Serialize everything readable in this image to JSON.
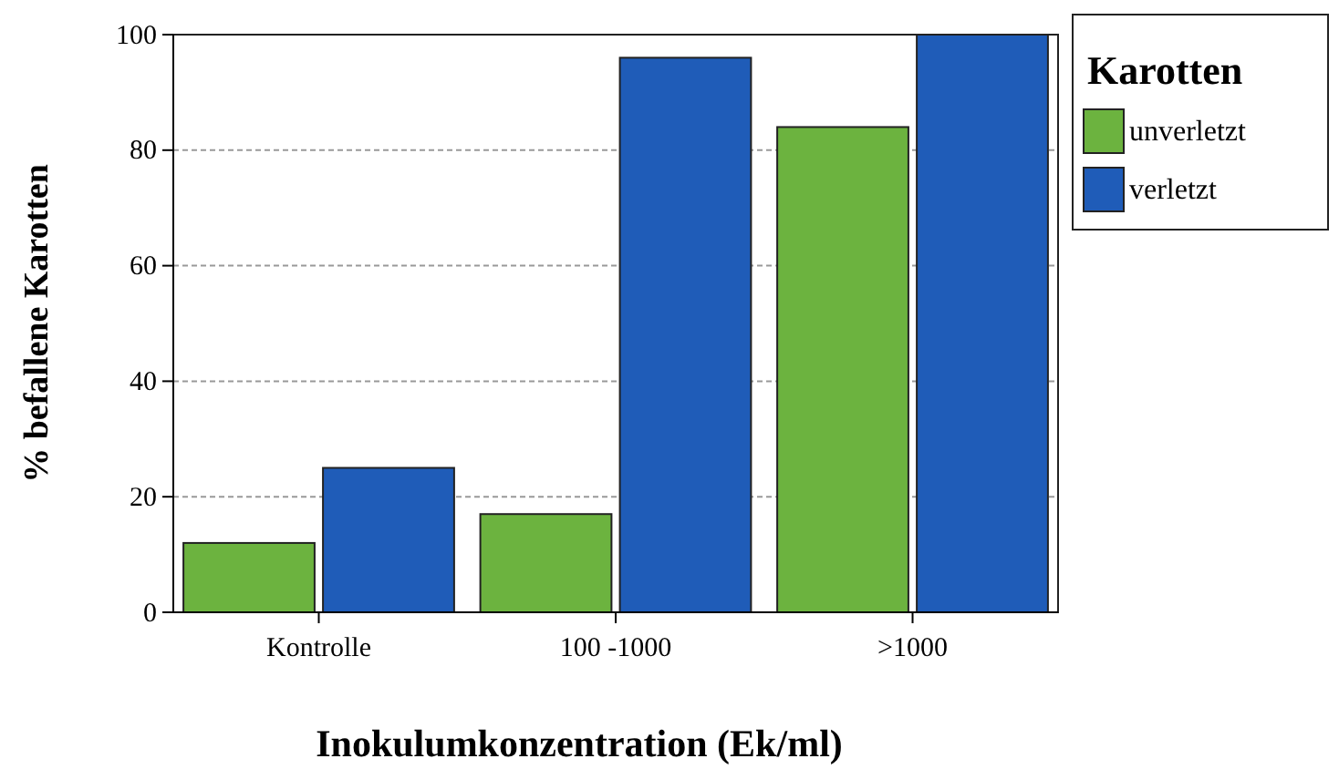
{
  "chart_data": {
    "type": "bar",
    "xlabel": "Inokulumkonzentration (Ek/ml)",
    "ylabel": "% befallene Karotten",
    "legend_title": "Karotten",
    "categories": [
      "Kontrolle",
      "100 -1000",
      ">1000"
    ],
    "series": [
      {
        "name": "unverletzt",
        "color": "#6cb33f",
        "values": [
          12,
          17,
          84
        ]
      },
      {
        "name": "verletzt",
        "color": "#1f5cb8",
        "values": [
          25,
          96,
          100
        ]
      }
    ],
    "ylim": [
      0,
      100
    ],
    "yticks": [
      0,
      20,
      40,
      60,
      80,
      100
    ],
    "grid": "y",
    "legend": "top right"
  }
}
